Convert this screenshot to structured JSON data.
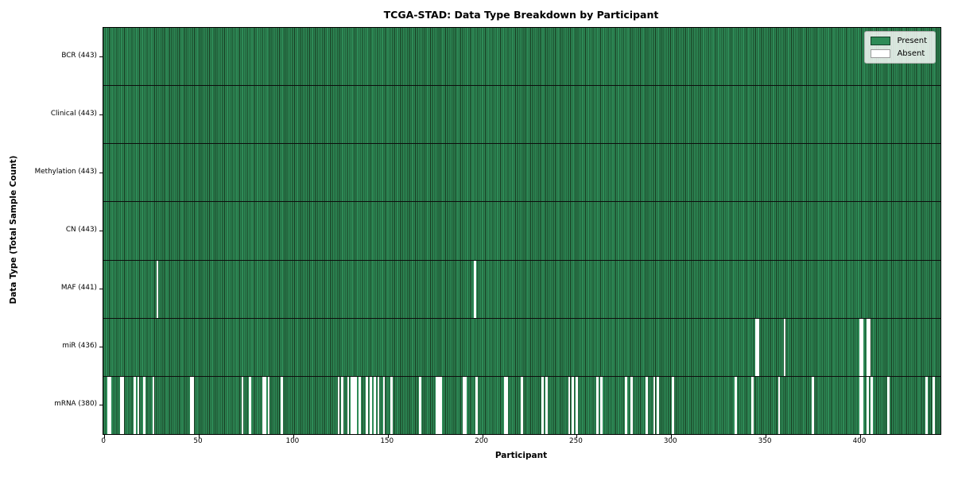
{
  "title": "TCGA-STAD: Data Type Breakdown by Participant",
  "axes": {
    "xlabel": "Participant",
    "ylabel": "Data Type (Total Sample Count)",
    "x_ticks": [
      0,
      50,
      100,
      150,
      200,
      250,
      300,
      350,
      400
    ]
  },
  "legend": {
    "items": [
      {
        "label": "Present",
        "color": "#2e8b57"
      },
      {
        "label": "Absent",
        "color": "#ffffff"
      }
    ],
    "position": "upper-right"
  },
  "colors": {
    "present": "#2e8b57",
    "absent": "#ffffff",
    "bar_edge": "#17381f",
    "row_separator": "#0d0d0d",
    "plot_border": "#000000"
  },
  "chart_data": {
    "type": "heatmap",
    "title": "TCGA-STAD: Data Type Breakdown by Participant",
    "xlabel": "Participant",
    "ylabel": "Data Type (Total Sample Count)",
    "x_ticks": [
      0,
      50,
      100,
      150,
      200,
      250,
      300,
      350,
      400
    ],
    "n_participants": 443,
    "xlim": [
      -0.5,
      443.5
    ],
    "grid": false,
    "legend_entries": [
      "Present",
      "Absent"
    ],
    "rows": [
      {
        "name": "bcr",
        "label": "BCR (443)",
        "present_count": 443,
        "absent_participants": []
      },
      {
        "name": "clinical",
        "label": "Clinical (443)",
        "present_count": 443,
        "absent_participants": []
      },
      {
        "name": "methylation",
        "label": "Methylation (443)",
        "present_count": 443,
        "absent_participants": []
      },
      {
        "name": "cn",
        "label": "CN (443)",
        "present_count": 443,
        "absent_participants": []
      },
      {
        "name": "maf",
        "label": "MAF (441)",
        "present_count": 441,
        "absent_participants": [
          28,
          196
        ]
      },
      {
        "name": "mir",
        "label": "miR (436)",
        "present_count": 436,
        "absent_participants": [
          345,
          346,
          360,
          400,
          401,
          404,
          405
        ]
      },
      {
        "name": "mrna",
        "label": "mRNA (380)",
        "present_count": 380,
        "absent_participants": [
          2,
          3,
          9,
          10,
          16,
          18,
          21,
          26,
          46,
          47,
          73,
          77,
          84,
          85,
          87,
          94,
          124,
          126,
          129,
          131,
          132,
          133,
          135,
          139,
          141,
          143,
          145,
          148,
          152,
          167,
          176,
          177,
          178,
          190,
          191,
          197,
          212,
          213,
          221,
          232,
          234,
          246,
          248,
          250,
          261,
          263,
          276,
          279,
          287,
          291,
          293,
          301,
          334,
          343,
          357,
          375,
          400,
          401,
          404,
          406,
          415,
          435,
          439
        ]
      }
    ]
  }
}
